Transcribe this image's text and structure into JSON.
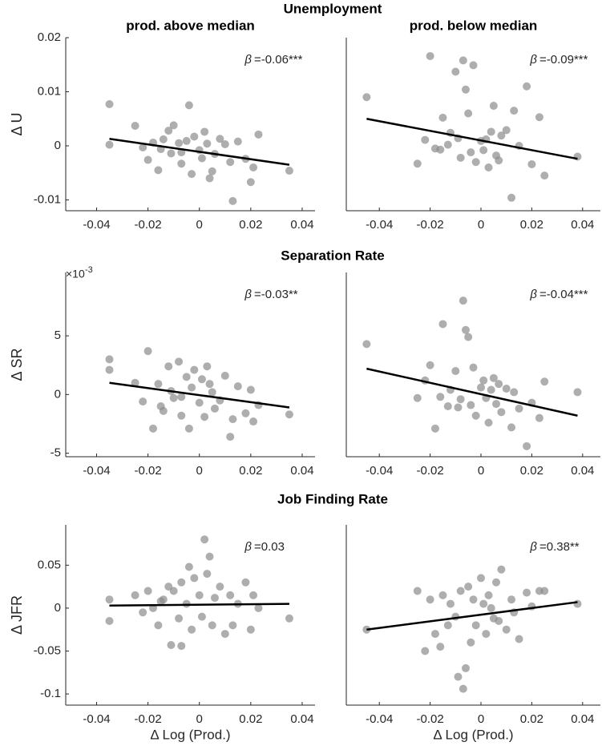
{
  "row_titles": [
    "Unemployment",
    "Separation Rate",
    "Job Finding Rate"
  ],
  "chart_data": [
    {
      "type": "scatter",
      "title": "prod. above median",
      "ylabel": "Δ U",
      "annotation_symbol": "β",
      "annotation": "=-0.06***",
      "color": "#8c8c8c",
      "line_color": "#000000",
      "xlim": [
        -0.052,
        0.045
      ],
      "xticks": [
        -0.04,
        -0.02,
        0,
        0.02,
        0.04
      ],
      "ylim": [
        -0.012,
        0.02
      ],
      "yticks": [
        -0.01,
        0,
        0.01,
        0.02
      ],
      "x": [
        -0.035,
        -0.035,
        -0.025,
        -0.022,
        -0.02,
        -0.018,
        -0.016,
        -0.014,
        -0.012,
        -0.011,
        -0.01,
        -0.008,
        -0.007,
        -0.005,
        -0.004,
        -0.003,
        -0.002,
        0,
        0.001,
        0.002,
        0.003,
        0.005,
        0.006,
        0.008,
        0.01,
        0.012,
        0.013,
        0.015,
        0.018,
        0.02,
        0.021,
        0.023,
        0.035,
        -0.007,
        0.004,
        -0.015
      ],
      "y": [
        0.0077,
        0.0002,
        0.0037,
        -0.0003,
        -0.0026,
        0.0006,
        -0.0045,
        0.0012,
        0.0028,
        -0.0014,
        0.0038,
        0.0005,
        -0.0033,
        0.0009,
        0.0075,
        -0.0052,
        0.0017,
        -0.0008,
        -0.0023,
        0.0026,
        0.0004,
        -0.0047,
        -0.0015,
        0.0013,
        0.0003,
        -0.003,
        -0.0102,
        0.0008,
        -0.0024,
        -0.0067,
        -0.004,
        0.0021,
        -0.0046,
        -0.0012,
        -0.006,
        -0.0006
      ],
      "fit_x": [
        -0.035,
        0.035
      ],
      "fit_y": [
        0.0013,
        -0.0035
      ]
    },
    {
      "type": "scatter",
      "title": "prod. below median",
      "annotation_symbol": "β",
      "annotation": "=-0.09***",
      "color": "#8c8c8c",
      "line_color": "#000000",
      "xlim": [
        -0.053,
        0.047
      ],
      "xticks": [
        -0.04,
        -0.02,
        0,
        0.02,
        0.04
      ],
      "ylim": [
        -0.012,
        0.02
      ],
      "x": [
        -0.045,
        -0.025,
        -0.022,
        -0.02,
        -0.018,
        -0.015,
        -0.013,
        -0.012,
        -0.01,
        -0.008,
        -0.007,
        -0.006,
        -0.005,
        -0.004,
        -0.003,
        -0.002,
        0,
        0.001,
        0.002,
        0.003,
        0.004,
        0.005,
        0.006,
        0.008,
        0.01,
        0.012,
        0.013,
        0.015,
        0.018,
        0.02,
        0.023,
        0.025,
        0.038,
        -0.009,
        0.007,
        -0.016
      ],
      "y": [
        0.009,
        -0.0033,
        0.0011,
        0.0166,
        -0.0005,
        0.0052,
        0.0002,
        0.0024,
        0.0137,
        -0.0022,
        0.0158,
        0.0104,
        0.006,
        -0.0012,
        0.0149,
        -0.003,
        0.0009,
        -0.0008,
        0.0012,
        -0.004,
        0.0026,
        0.0074,
        -0.0018,
        0.0019,
        0.0029,
        -0.0096,
        0.0065,
        0,
        0.011,
        -0.0034,
        0.0053,
        -0.0055,
        -0.002,
        0.0014,
        -0.0027,
        -0.0007
      ],
      "fit_x": [
        -0.045,
        0.038
      ],
      "fit_y": [
        0.005,
        -0.0024
      ]
    },
    {
      "type": "scatter",
      "ylabel": "Δ SR",
      "y_multiplier": "×10",
      "y_multiplier_exp": "-3",
      "annotation_symbol": "β",
      "annotation": "=-0.03**",
      "color": "#8c8c8c",
      "line_color": "#000000",
      "xlim": [
        -0.052,
        0.045
      ],
      "xticks": [
        -0.04,
        -0.02,
        0,
        0.02,
        0.04
      ],
      "ylim": [
        -5.3,
        10.4
      ],
      "yticks": [
        -5,
        0,
        5
      ],
      "x": [
        -0.035,
        -0.035,
        -0.025,
        -0.022,
        -0.02,
        -0.018,
        -0.016,
        -0.014,
        -0.012,
        -0.011,
        -0.01,
        -0.008,
        -0.007,
        -0.005,
        -0.004,
        -0.003,
        -0.002,
        0,
        0.001,
        0.002,
        0.003,
        0.005,
        0.006,
        0.008,
        0.01,
        0.012,
        0.013,
        0.015,
        0.018,
        0.02,
        0.021,
        0.023,
        0.035,
        -0.007,
        0.004,
        -0.015
      ],
      "y": [
        3.0,
        2.1,
        1.0,
        -0.6,
        3.7,
        -2.9,
        0.9,
        -1.4,
        2.4,
        0.3,
        -0.3,
        2.8,
        -1.8,
        1.5,
        -2.9,
        0.6,
        2.1,
        -0.7,
        1.3,
        -1.9,
        2.4,
        0.2,
        -1.2,
        -0.5,
        1.6,
        -3.6,
        -2.1,
        0.7,
        -1.6,
        0.4,
        -2.3,
        -0.9,
        -1.7,
        -0.2,
        0.9,
        -1.0
      ],
      "fit_x": [
        -0.035,
        0.035
      ],
      "fit_y": [
        1.0,
        -1.1
      ]
    },
    {
      "type": "scatter",
      "annotation_symbol": "β",
      "annotation": "=-0.04***",
      "color": "#8c8c8c",
      "line_color": "#000000",
      "xlim": [
        -0.053,
        0.047
      ],
      "xticks": [
        -0.04,
        -0.02,
        0,
        0.02,
        0.04
      ],
      "ylim": [
        -5.3,
        10.4
      ],
      "x": [
        -0.045,
        -0.025,
        -0.022,
        -0.02,
        -0.018,
        -0.015,
        -0.013,
        -0.012,
        -0.01,
        -0.008,
        -0.007,
        -0.006,
        -0.005,
        -0.004,
        -0.003,
        -0.002,
        0,
        0.001,
        0.002,
        0.003,
        0.004,
        0.005,
        0.006,
        0.008,
        0.01,
        0.012,
        0.013,
        0.015,
        0.018,
        0.02,
        0.023,
        0.025,
        0.038,
        -0.009,
        0.007,
        -0.016
      ],
      "y": [
        4.3,
        -0.3,
        1.2,
        2.5,
        -2.9,
        6.0,
        -1.0,
        0.4,
        2.0,
        -0.4,
        8.0,
        5.5,
        4.9,
        -0.9,
        2.3,
        -1.8,
        0.6,
        1.2,
        -0.3,
        -2.4,
        0.4,
        1.4,
        -0.8,
        -1.5,
        0.5,
        -2.8,
        0.2,
        -1.2,
        -4.4,
        -0.7,
        -2.0,
        1.1,
        0.2,
        -1.1,
        0.9,
        -0.2
      ],
      "fit_x": [
        -0.045,
        0.038
      ],
      "fit_y": [
        2.2,
        -1.8
      ]
    },
    {
      "type": "scatter",
      "ylabel": "Δ JFR",
      "xlabel": "Δ Log (Prod.)",
      "annotation_symbol": "β",
      "annotation": "=0.03",
      "color": "#8c8c8c",
      "line_color": "#000000",
      "xlim": [
        -0.052,
        0.045
      ],
      "xticks": [
        -0.04,
        -0.02,
        0,
        0.02,
        0.04
      ],
      "ylim": [
        -0.113,
        0.097
      ],
      "yticks": [
        -0.1,
        -0.05,
        0,
        0.05
      ],
      "x": [
        -0.035,
        -0.035,
        -0.025,
        -0.022,
        -0.02,
        -0.018,
        -0.016,
        -0.014,
        -0.012,
        -0.011,
        -0.01,
        -0.008,
        -0.007,
        -0.005,
        -0.004,
        -0.003,
        -0.002,
        0,
        0.001,
        0.002,
        0.003,
        0.005,
        0.006,
        0.008,
        0.01,
        0.012,
        0.013,
        0.015,
        0.018,
        0.02,
        0.021,
        0.023,
        0.035,
        -0.007,
        0.004,
        -0.015
      ],
      "y": [
        0.01,
        -0.015,
        0.015,
        -0.005,
        0.02,
        0,
        -0.02,
        0.01,
        0.025,
        -0.043,
        0.02,
        -0.012,
        0.03,
        0.005,
        0.048,
        -0.025,
        0.035,
        0.015,
        -0.01,
        0.08,
        0.04,
        -0.02,
        0.012,
        0.025,
        -0.03,
        0.015,
        -0.02,
        0.005,
        0.03,
        -0.025,
        0.015,
        0,
        -0.012,
        -0.044,
        0.06,
        0.008
      ],
      "fit_x": [
        -0.035,
        0.035
      ],
      "fit_y": [
        0.003,
        0.005
      ]
    },
    {
      "type": "scatter",
      "xlabel": "Δ Log (Prod.)",
      "annotation_symbol": "β",
      "annotation": "=0.38**",
      "color": "#8c8c8c",
      "line_color": "#000000",
      "xlim": [
        -0.053,
        0.047
      ],
      "xticks": [
        -0.04,
        -0.02,
        0,
        0.02,
        0.04
      ],
      "ylim": [
        -0.113,
        0.097
      ],
      "x": [
        -0.045,
        -0.025,
        -0.022,
        -0.02,
        -0.018,
        -0.015,
        -0.013,
        -0.012,
        -0.01,
        -0.008,
        -0.007,
        -0.006,
        -0.005,
        -0.004,
        -0.003,
        -0.002,
        0,
        0.001,
        0.002,
        0.003,
        0.004,
        0.005,
        0.006,
        0.008,
        0.01,
        0.012,
        0.013,
        0.015,
        0.018,
        0.02,
        0.023,
        0.025,
        0.038,
        -0.009,
        0.007,
        -0.016
      ],
      "y": [
        -0.025,
        0.02,
        -0.05,
        0.01,
        -0.03,
        0.015,
        -0.02,
        0.005,
        -0.01,
        0.02,
        -0.094,
        -0.07,
        0.025,
        -0.04,
        0.01,
        -0.02,
        0.035,
        0.005,
        -0.03,
        0.015,
        0,
        -0.012,
        0.03,
        0.045,
        -0.025,
        0.01,
        -0.005,
        -0.036,
        0.018,
        0.002,
        0.02,
        0.02,
        0.005,
        -0.08,
        -0.015,
        -0.045
      ],
      "fit_x": [
        -0.045,
        0.038
      ],
      "fit_y": [
        -0.025,
        0.007
      ]
    }
  ]
}
